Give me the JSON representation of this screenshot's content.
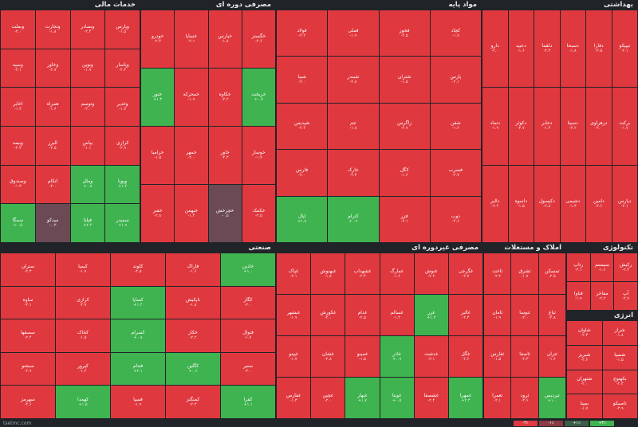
{
  "sectors": [
    {
      "id": "financial",
      "title": "خدمات مالی",
      "tiles": [
        {
          "s": "وبملت",
          "p": "-۲.۰",
          "c": "r"
        },
        {
          "s": "وتجارت",
          "p": "-۱.۸",
          "c": "r"
        },
        {
          "s": "وبصادر",
          "p": "-۲.۴",
          "c": "r"
        },
        {
          "s": "وپارس",
          "p": "-۱.۵",
          "c": "r"
        },
        {
          "s": "وسپه",
          "p": "-۲.۱",
          "c": "r"
        },
        {
          "s": "وخاور",
          "p": "-۲.۷",
          "c": "r"
        },
        {
          "s": "ونوین",
          "p": "-۱.۹",
          "c": "r"
        },
        {
          "s": "وپاسار",
          "p": "-۲.۲",
          "c": "r"
        },
        {
          "s": "اخابر",
          "p": "-۱.۴",
          "c": "r"
        },
        {
          "s": "همراه",
          "p": "-۱.۶",
          "c": "r"
        },
        {
          "s": "وتوسم",
          "p": "-۲.۰",
          "c": "r"
        },
        {
          "s": "وغدیر",
          "p": "-۱.۷",
          "c": "r"
        },
        {
          "s": "وبیمه",
          "p": "-۲.۳",
          "c": "r"
        },
        {
          "s": "البرز",
          "p": "-۲.۵",
          "c": "r"
        },
        {
          "s": "بپاس",
          "p": "-۱.۱",
          "c": "r"
        },
        {
          "s": "کرازی",
          "p": "-۲.۹",
          "c": "r"
        },
        {
          "s": "وصندوق",
          "p": "-۱.۳",
          "c": "r"
        },
        {
          "s": "اتکام",
          "p": "-۲.۰",
          "c": "r"
        },
        {
          "s": "وملل",
          "p": "+۰.۸",
          "c": "g"
        },
        {
          "s": "وپویا",
          "p": "+۱.۲",
          "c": "g"
        },
        {
          "s": "سمگا",
          "p": "+۰.۵",
          "c": "g"
        },
        {
          "s": "میدکو",
          "p": "-۰.۳",
          "c": "n"
        },
        {
          "s": "فیلتا",
          "p": "+۲.۴",
          "c": "g"
        },
        {
          "s": "سمیدر",
          "p": "+۱.۹",
          "c": "g"
        }
      ]
    },
    {
      "id": "base-metals",
      "title": "مواد پایه",
      "tiles": [
        {
          "s": "فولاد",
          "p": "-۲.۲",
          "c": "r"
        },
        {
          "s": "فملی",
          "p": "-۱.۹",
          "c": "r"
        },
        {
          "s": "فخوز",
          "p": "-۲.۵",
          "c": "r"
        },
        {
          "s": "کچاد",
          "p": "-۱.۷",
          "c": "r"
        },
        {
          "s": "شپنا",
          "p": "-۲.۰",
          "c": "r"
        },
        {
          "s": "شبندر",
          "p": "-۲.۸",
          "c": "r"
        },
        {
          "s": "شتران",
          "p": "-۱.۵",
          "c": "r"
        },
        {
          "s": "پارس",
          "p": "-۲.۱",
          "c": "r"
        },
        {
          "s": "شپدیس",
          "p": "-۲.۴",
          "c": "r"
        },
        {
          "s": "جم",
          "p": "-۱.۸",
          "c": "r"
        },
        {
          "s": "زاگرس",
          "p": "-۲.۹",
          "c": "r"
        },
        {
          "s": "شفن",
          "p": "-۱.۲",
          "c": "r"
        },
        {
          "s": "فارس",
          "p": "-۲.۰",
          "c": "r"
        },
        {
          "s": "خارک",
          "p": "-۲.۳",
          "c": "r"
        },
        {
          "s": "کگل",
          "p": "-۱.۶",
          "c": "r"
        },
        {
          "s": "فسرب",
          "p": "-۲.۷",
          "c": "r"
        },
        {
          "s": "اپال",
          "p": "+۱.۸",
          "c": "g"
        },
        {
          "s": "کترام",
          "p": "+۰.۹",
          "c": "g"
        },
        {
          "s": "فزر",
          "p": "-۲.۱",
          "c": "r"
        },
        {
          "s": "ذوب",
          "p": "-۲.۶",
          "c": "r"
        }
      ]
    },
    {
      "id": "consumer-cyclical",
      "title": "مصرفی دوره ای",
      "tiles": [
        {
          "s": "خودرو",
          "p": "-۲.۴",
          "c": "r"
        },
        {
          "s": "خساپا",
          "p": "-۲.۱",
          "c": "r"
        },
        {
          "s": "خپارس",
          "p": "-۱.۸",
          "c": "r"
        },
        {
          "s": "خگستر",
          "p": "-۲.۶",
          "c": "r"
        },
        {
          "s": "ختور",
          "p": "+۱.۳",
          "c": "g"
        },
        {
          "s": "خمحرکه",
          "p": "-۱.۹",
          "c": "r"
        },
        {
          "s": "خکاوه",
          "p": "-۲.۲",
          "c": "r"
        },
        {
          "s": "خریخت",
          "p": "+۰.۷",
          "c": "g"
        },
        {
          "s": "خزامیا",
          "p": "-۱.۵",
          "c": "r"
        },
        {
          "s": "خمهر",
          "p": "-۲.۰",
          "c": "r"
        },
        {
          "s": "خاور",
          "p": "-۲.۳",
          "c": "r"
        },
        {
          "s": "خوساز",
          "p": "-۱.۷",
          "c": "r"
        },
        {
          "s": "خفنر",
          "p": "-۲.۸",
          "c": "r"
        },
        {
          "s": "خبهمن",
          "p": "-۱.۴",
          "c": "r"
        },
        {
          "s": "خچرخش",
          "p": "-۰.۵",
          "c": "n"
        },
        {
          "s": "خکمک",
          "p": "-۲.۵",
          "c": "r"
        }
      ]
    },
    {
      "id": "healthcare",
      "title": "بهداشتی",
      "tiles": [
        {
          "s": "دارو",
          "p": "-۲.۰",
          "c": "r"
        },
        {
          "s": "دعبید",
          "p": "-۱.۶",
          "c": "r"
        },
        {
          "s": "دلقما",
          "p": "-۲.۳",
          "c": "r"
        },
        {
          "s": "دسبحا",
          "p": "-۱.۸",
          "c": "r"
        },
        {
          "s": "دفارا",
          "p": "-۲.۵",
          "c": "r"
        },
        {
          "s": "تیپیکو",
          "p": "-۲.۱",
          "c": "r"
        },
        {
          "s": "دتماد",
          "p": "-۱.۹",
          "c": "r"
        },
        {
          "s": "دکوثر",
          "p": "-۲.۷",
          "c": "r"
        },
        {
          "s": "دجابر",
          "p": "-۱.۴",
          "c": "r"
        },
        {
          "s": "دسینا",
          "p": "-۲.۲",
          "c": "r"
        },
        {
          "s": "دزهراوی",
          "p": "-۲.۰",
          "c": "r"
        },
        {
          "s": "برکت",
          "p": "-۱.۷",
          "c": "r"
        },
        {
          "s": "دالبر",
          "p": "-۲.۴",
          "c": "r"
        },
        {
          "s": "داسوه",
          "p": "-۱.۵",
          "c": "r"
        },
        {
          "s": "دکپسول",
          "p": "-۲.۸",
          "c": "r"
        },
        {
          "s": "دشیمی",
          "p": "-۱.۳",
          "c": "r"
        },
        {
          "s": "دامین",
          "p": "-۲.۶",
          "c": "r"
        },
        {
          "s": "دپارس",
          "p": "-۲.۱",
          "c": "r"
        }
      ]
    },
    {
      "id": "industrial",
      "title": "صنعتی",
      "tiles": [
        {
          "s": "ستران",
          "p": "-۲.۳",
          "c": "r"
        },
        {
          "s": "کیمیا",
          "p": "-۱.۹",
          "c": "r"
        },
        {
          "s": "کلوند",
          "p": "-۲.۵",
          "c": "r"
        },
        {
          "s": "فاراک",
          "p": "-۱.۶",
          "c": "r"
        },
        {
          "s": "خاذین",
          "p": "+۱.۰",
          "c": "g"
        },
        {
          "s": "ساوه",
          "p": "-۲.۱",
          "c": "r"
        },
        {
          "s": "کرازی",
          "p": "-۲.۷",
          "c": "r"
        },
        {
          "s": "کساپا",
          "p": "+۱.۴",
          "c": "g"
        },
        {
          "s": "تاپکیش",
          "p": "-۱.۸",
          "c": "r"
        },
        {
          "s": "کگاز",
          "p": "-۲.۰",
          "c": "r"
        },
        {
          "s": "سصفها",
          "p": "-۲.۴",
          "c": "r"
        },
        {
          "s": "کخاک",
          "p": "-۱.۵",
          "c": "r"
        },
        {
          "s": "کسرام",
          "p": "+۰.۸",
          "c": "g"
        },
        {
          "s": "خکار",
          "p": "-۲.۲",
          "c": "r"
        },
        {
          "s": "فنوال",
          "p": "-۱.۷",
          "c": "r"
        },
        {
          "s": "سبجنو",
          "p": "-۲.۹",
          "c": "r"
        },
        {
          "s": "کپرور",
          "p": "-۱.۲",
          "c": "r"
        },
        {
          "s": "فجام",
          "p": "+۲.۱",
          "c": "g"
        },
        {
          "s": "کگلین",
          "p": "+۰.۶",
          "c": "g"
        },
        {
          "s": "سنیر",
          "p": "-۲.۰",
          "c": "r"
        },
        {
          "s": "سهرمز",
          "p": "-۲.۶",
          "c": "r"
        },
        {
          "s": "کهمدا",
          "p": "+۱.۵",
          "c": "g"
        },
        {
          "s": "فسپا",
          "p": "-۱.۹",
          "c": "r"
        },
        {
          "s": "کمنگنز",
          "p": "-۲.۳",
          "c": "r"
        },
        {
          "s": "کفرا",
          "p": "+۱.۱",
          "c": "g"
        }
      ]
    },
    {
      "id": "consumer-noncyclical",
      "title": "مصرفی غیردوره ای",
      "tiles": [
        {
          "s": "غپاک",
          "p": "-۲.۱",
          "c": "r"
        },
        {
          "s": "غبهنوش",
          "p": "-۱.۸",
          "c": "r"
        },
        {
          "s": "غشهداب",
          "p": "-۲.۴",
          "c": "r"
        },
        {
          "s": "غمارگ",
          "p": "-۱.۶",
          "c": "r"
        },
        {
          "s": "غنوش",
          "p": "-۲.۲",
          "c": "r"
        },
        {
          "s": "غگرجی",
          "p": "-۲.۷",
          "c": "r"
        },
        {
          "s": "غبشهر",
          "p": "-۱.۹",
          "c": "r"
        },
        {
          "s": "غکورش",
          "p": "-۲.۰",
          "c": "r"
        },
        {
          "s": "غدام",
          "p": "-۲.۵",
          "c": "r"
        },
        {
          "s": "غسالم",
          "p": "-۱.۴",
          "c": "r"
        },
        {
          "s": "غزر",
          "p": "+۱.۲",
          "c": "g"
        },
        {
          "s": "غالبر",
          "p": "-۲.۳",
          "c": "r"
        },
        {
          "s": "غپینو",
          "p": "-۱.۷",
          "c": "r"
        },
        {
          "s": "غشان",
          "p": "-۲.۸",
          "c": "r"
        },
        {
          "s": "غمینو",
          "p": "-۱.۵",
          "c": "r"
        },
        {
          "s": "غاذر",
          "p": "+۰.۹",
          "c": "g"
        },
        {
          "s": "غدشت",
          "p": "-۲.۱",
          "c": "r"
        },
        {
          "s": "غگل",
          "p": "-۲.۶",
          "c": "r"
        },
        {
          "s": "غفارس",
          "p": "-۱.۳",
          "c": "r"
        },
        {
          "s": "غچین",
          "p": "-۲.۰",
          "c": "r"
        },
        {
          "s": "غبهار",
          "p": "+۱.۷",
          "c": "g"
        },
        {
          "s": "غویتا",
          "p": "+۰.۵",
          "c": "g"
        },
        {
          "s": "غشصفا",
          "p": "-۲.۴",
          "c": "r"
        },
        {
          "s": "غمهرا",
          "p": "+۲.۳",
          "c": "g"
        }
      ]
    },
    {
      "id": "real-estate",
      "title": "املاک و مستغلات",
      "tiles": [
        {
          "s": "ثاخت",
          "p": "-۲.۲",
          "c": "r"
        },
        {
          "s": "ثشرق",
          "p": "-۱.۷",
          "c": "r"
        },
        {
          "s": "ثمسکن",
          "p": "-۲.۵",
          "c": "r"
        },
        {
          "s": "ثامان",
          "p": "-۱.۹",
          "c": "r"
        },
        {
          "s": "ثنوسا",
          "p": "-۲.۰",
          "c": "r"
        },
        {
          "s": "ثباغ",
          "p": "-۲.۸",
          "c": "r"
        },
        {
          "s": "ثفارس",
          "p": "-۱.۵",
          "c": "r"
        },
        {
          "s": "ثاصفا",
          "p": "-۲.۳",
          "c": "r"
        },
        {
          "s": "ثتران",
          "p": "-۱.۶",
          "c": "r"
        },
        {
          "s": "ثعمرا",
          "p": "-۲.۱",
          "c": "r"
        },
        {
          "s": "ثرود",
          "p": "-۲.۶",
          "c": "r"
        },
        {
          "s": "ثپردیس",
          "p": "+۱.۰",
          "c": "g"
        }
      ]
    },
    {
      "id": "technology",
      "title": "تکنولوژی",
      "tiles": [
        {
          "s": "رتاپ",
          "p": "-۲.۱",
          "c": "r"
        },
        {
          "s": "سیستم",
          "p": "-۱.۶",
          "c": "r"
        },
        {
          "s": "رکیش",
          "p": "-۲.۴",
          "c": "r"
        },
        {
          "s": "فناوا",
          "p": "-۱.۹",
          "c": "r"
        },
        {
          "s": "مفاخر",
          "p": "-۲.۲",
          "c": "r"
        },
        {
          "s": "آپ",
          "p": "-۲.۷",
          "c": "r"
        }
      ]
    },
    {
      "id": "energy",
      "title": "انرژی",
      "tiles": [
        {
          "s": "شاوان",
          "p": "-۲.۳",
          "c": "r"
        },
        {
          "s": "شراز",
          "p": "-۱.۸",
          "c": "r"
        },
        {
          "s": "شبریز",
          "p": "-۲.۶",
          "c": "r"
        },
        {
          "s": "شسپا",
          "p": "-۱.۵",
          "c": "r"
        },
        {
          "s": "شتهران",
          "p": "-۲.۰",
          "c": "r"
        },
        {
          "s": "بکهنوج",
          "p": "-۲.۴",
          "c": "r"
        },
        {
          "s": "بمپنا",
          "p": "-۱.۷",
          "c": "r"
        },
        {
          "s": "تاصیکو",
          "p": "-۲.۹",
          "c": "r"
        }
      ]
    }
  ],
  "footer": {
    "stamp": "tsetmc.com"
  },
  "legend": [
    {
      "label": "-۳٪",
      "color": "#e0383f"
    },
    {
      "label": "-۱٪",
      "color": "#8a3a44"
    },
    {
      "label": "+۱٪",
      "color": "#3a5f48"
    },
    {
      "label": "+۳٪",
      "color": "#3eb34f"
    }
  ]
}
